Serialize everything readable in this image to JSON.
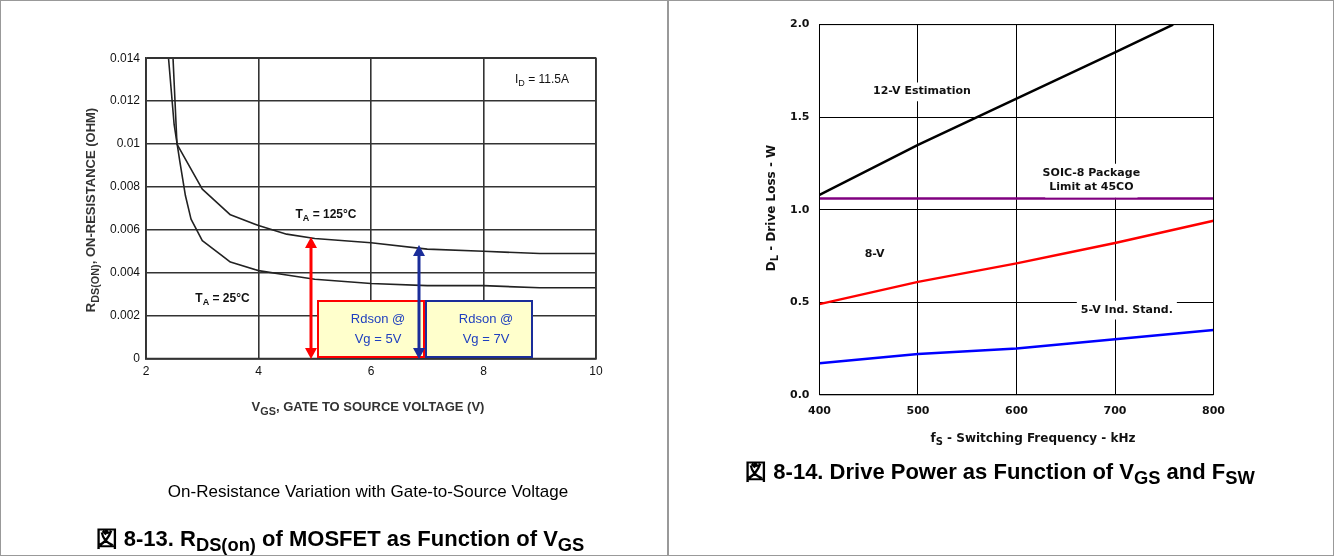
{
  "chart_data": [
    {
      "type": "line",
      "title": "図 8-13. R$_{DS(on)}$ of MOSFET as Function of V$_{GS}$",
      "xlabel": "V$_{GS}$, GATE TO SOURCE VOLTAGE (V)",
      "ylabel": "R$_{DS(ON)}$, ON-RESISTANCE (OHM)",
      "xlim": [
        2,
        10
      ],
      "xticks": [
        2,
        4,
        6,
        8,
        10
      ],
      "ylim": [
        0,
        0.014
      ],
      "yticks": [
        0,
        0.002,
        0.004,
        0.006,
        0.008,
        0.01,
        0.012,
        0.014
      ],
      "grid": true,
      "series": [
        {
          "name": "T$_{A}$ = 125°C",
          "color": "#222222",
          "x": [
            2.48,
            2.55,
            2.7,
            3,
            3.5,
            4,
            4.5,
            5,
            6,
            7,
            8,
            9,
            10
          ],
          "values": [
            0.014,
            0.01,
            0.0093,
            0.0079,
            0.0067,
            0.0062,
            0.0058,
            0.0056,
            0.0054,
            0.0051,
            0.005,
            0.0049,
            0.0049
          ]
        },
        {
          "name": "T$_{A}$ = 25°C",
          "color": "#222222",
          "x": [
            2.4,
            2.5,
            2.6,
            2.7,
            2.8,
            3,
            3.5,
            4,
            4.5,
            5,
            6,
            7,
            8,
            9,
            10
          ],
          "values": [
            0.014,
            0.0109,
            0.0092,
            0.0076,
            0.0065,
            0.0055,
            0.0045,
            0.0041,
            0.0039,
            0.0037,
            0.0035,
            0.0034,
            0.0034,
            0.0033,
            0.0033
          ]
        }
      ],
      "annotations": [
        "I$_{D}$ = 11.5A",
        "Rdson  @ Vg = 5V",
        "Rdson  @ Vg = 7V",
        "On-Resistance Variation with Gate-to-Source Voltage"
      ]
    },
    {
      "type": "line",
      "title": "図 8-14. Drive Power as Function of V$_{GS}$ and F$_{SW}$",
      "xlabel": "f$_{S}$ - Switching Frequency - kHz",
      "ylabel": "D$_{L}$ - Drive Loss - W",
      "xlim": [
        400,
        800
      ],
      "xticks": [
        400,
        500,
        600,
        700,
        800
      ],
      "ylim": [
        0,
        2
      ],
      "yticks": [
        {
          "value": 0,
          "label": "0.0"
        },
        {
          "value": 0.5,
          "label": "0.5"
        },
        {
          "value": 1,
          "label": "1.0"
        },
        {
          "value": 1.5,
          "label": "1.5"
        },
        {
          "value": 2,
          "label": "2.0"
        }
      ],
      "grid": true,
      "series": [
        {
          "name": "12-V Estimation",
          "color": "#000000",
          "x": [
            400,
            500,
            600,
            700,
            759
          ],
          "values": [
            1.08,
            1.35,
            1.6,
            1.85,
            2.0
          ]
        },
        {
          "name": "SOIC-8 Package Limit at 45CO",
          "color": "#800080",
          "x": [
            400,
            800
          ],
          "values": [
            1.06,
            1.06
          ]
        },
        {
          "name": "8-V",
          "color": "#ff0000",
          "x": [
            400,
            500,
            600,
            700,
            800
          ],
          "values": [
            0.49,
            0.61,
            0.71,
            0.82,
            0.94
          ]
        },
        {
          "name": "5-V Ind. Stand.",
          "color": "#0000ff",
          "x": [
            400,
            500,
            600,
            700,
            800
          ],
          "values": [
            0.17,
            0.22,
            0.25,
            0.3,
            0.35
          ]
        }
      ]
    }
  ]
}
